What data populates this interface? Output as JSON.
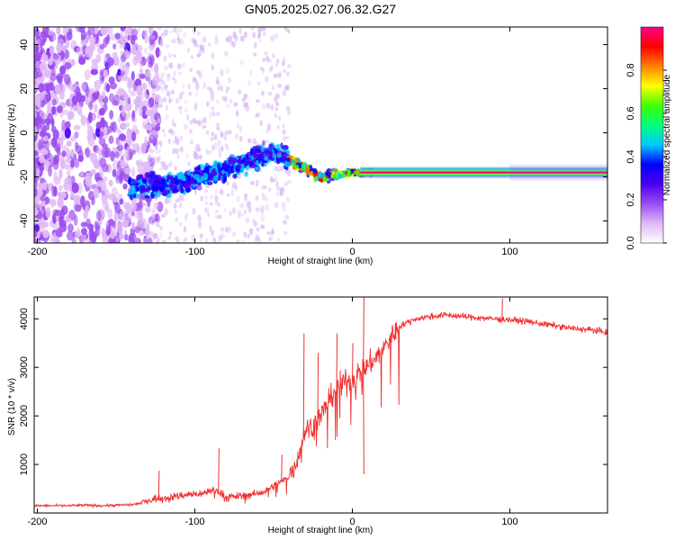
{
  "title": "GN05.2025.027.06.32.G27",
  "chart_data": [
    {
      "type": "heatmap",
      "xlabel": "Height of straight line (km)",
      "ylabel": "Frequency (Hz)",
      "xlim": [
        -202,
        162
      ],
      "ylim": [
        -50,
        48
      ],
      "x_ticks": [
        -200,
        -100,
        0,
        100
      ],
      "y_ticks": [
        40,
        20,
        0,
        -20,
        -40
      ],
      "ridge": {
        "x": [
          -140,
          -120,
          -100,
          -80,
          -60,
          -50,
          -40,
          -30,
          -20,
          -10,
          0,
          10,
          100,
          162
        ],
        "y": [
          -24,
          -24,
          -21,
          -16,
          -11,
          -9,
          -12,
          -16,
          -20,
          -19,
          -18,
          -18,
          -18,
          -18
        ]
      },
      "colorbar": {
        "label": "Normalized spectral amplitude",
        "range": [
          0,
          1
        ],
        "ticks": [
          0.0,
          0.2,
          0.4,
          0.6,
          0.8
        ],
        "tick_labels": [
          "0.0",
          "0.2",
          "0.4",
          "0.6",
          "0.8"
        ],
        "colors": [
          "#ffffff",
          "#e0b8f6",
          "#9b4cf0",
          "#4b00f0",
          "#0000ff",
          "#00c8ff",
          "#00ff80",
          "#40ff00",
          "#ffff00",
          "#ff8000",
          "#ff0000",
          "#ff0088"
        ]
      }
    },
    {
      "type": "line",
      "xlabel": "Height of straight line (km)",
      "ylabel": "SNR (10 * v/v)",
      "xlim": [
        -202,
        162
      ],
      "ylim": [
        0,
        4450
      ],
      "x_ticks": [
        -200,
        -100,
        0,
        100
      ],
      "y_ticks": [
        1000,
        2000,
        3000,
        4000
      ],
      "color": "#f03030",
      "series": [
        {
          "x": [
            -202,
            -190,
            -180,
            -170,
            -160,
            -150,
            -140,
            -135,
            -125,
            -115,
            -105,
            -95,
            -90,
            -85,
            -80,
            -75,
            -70,
            -65,
            -60,
            -55,
            -50,
            -45,
            -40,
            -35,
            -30,
            -25,
            -20,
            -15,
            -10,
            -5,
            0,
            5,
            10,
            15,
            20,
            25,
            30,
            40,
            50,
            60,
            70,
            80,
            90,
            100,
            110,
            120,
            130,
            140,
            150,
            162
          ],
          "y": [
            150,
            150,
            150,
            160,
            150,
            160,
            170,
            200,
            300,
            330,
            380,
            400,
            480,
            450,
            330,
            340,
            350,
            380,
            400,
            450,
            560,
            650,
            750,
            1100,
            1700,
            1800,
            2000,
            2300,
            2600,
            2700,
            2750,
            2900,
            3050,
            3200,
            3400,
            3650,
            3850,
            4000,
            4050,
            4080,
            4050,
            4020,
            4000,
            3980,
            3950,
            3900,
            3850,
            3800,
            3780,
            3720
          ]
        }
      ],
      "spikes": [
        {
          "x": -123,
          "y": 870
        },
        {
          "x": -85,
          "y": 1330
        },
        {
          "x": -45,
          "y": 1200
        },
        {
          "x": -31,
          "y": 3700
        },
        {
          "x": -22,
          "y": 3300
        },
        {
          "x": -10,
          "y": 3700
        },
        {
          "x": 0,
          "y": 3500
        },
        {
          "x": 7,
          "y": 4450
        },
        {
          "x": 7,
          "y": 800
        },
        {
          "x": 95,
          "y": 4420
        }
      ]
    }
  ]
}
